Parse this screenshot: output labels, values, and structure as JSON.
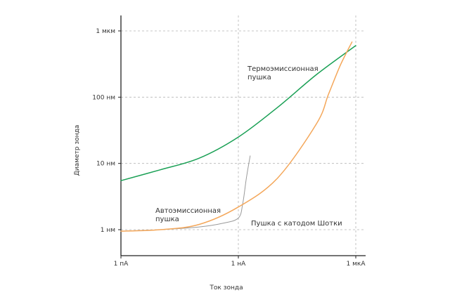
{
  "chart_data": {
    "type": "line",
    "xlabel": "Ток зонда",
    "ylabel": "Диаметр зонда",
    "x_scale": "log",
    "y_scale": "log",
    "x_ticks": [
      {
        "value": 1,
        "label": "1 пА"
      },
      {
        "value": 1000,
        "label": "1 нА"
      },
      {
        "value": 1000000,
        "label": "1 мкА"
      }
    ],
    "y_ticks": [
      {
        "value": 1,
        "label": "1 нм"
      },
      {
        "value": 10,
        "label": "10 нм"
      },
      {
        "value": 100,
        "label": "100 нм"
      },
      {
        "value": 1000,
        "label": "1 мкм"
      }
    ],
    "xlim_pA": [
      1,
      1000000
    ],
    "ylim_nm": [
      1,
      1000
    ],
    "x_unit": "pA",
    "y_unit": "nm",
    "grid": "dashed lines at y ticks, dashed verticals at 1 нА and 1 мкА",
    "series": [
      {
        "key": "thermionic",
        "color": "#1aa055",
        "points": [
          [
            1,
            5.5
          ],
          [
            10,
            8
          ],
          [
            100,
            12
          ],
          [
            1000,
            25
          ],
          [
            10000,
            70
          ],
          [
            100000,
            220
          ],
          [
            1000000,
            600
          ]
        ]
      },
      {
        "key": "field_emission",
        "color": "#9a9a9a",
        "points": [
          [
            1,
            0.95
          ],
          [
            10,
            1.0
          ],
          [
            100,
            1.1
          ],
          [
            400,
            1.25
          ],
          [
            1000,
            1.5
          ],
          [
            1300,
            2.5
          ],
          [
            1600,
            6
          ],
          [
            2000,
            13
          ]
        ]
      },
      {
        "key": "schottky",
        "color": "#f4a75a",
        "points": [
          [
            1,
            0.95
          ],
          [
            10,
            1.0
          ],
          [
            100,
            1.2
          ],
          [
            1000,
            2.2
          ],
          [
            10000,
            6
          ],
          [
            100000,
            40
          ],
          [
            200000,
            110
          ],
          [
            400000,
            300
          ],
          [
            800000,
            680
          ]
        ]
      }
    ],
    "annotations": [
      {
        "id": "thermionic",
        "lines": [
          "Термоэмиссионная",
          "пушка"
        ]
      },
      {
        "id": "field_emission",
        "lines": [
          "Автоэмиссионная",
          "пушка"
        ]
      },
      {
        "id": "schottky",
        "lines": [
          "Пушка с катодом Шотки"
        ]
      }
    ]
  }
}
